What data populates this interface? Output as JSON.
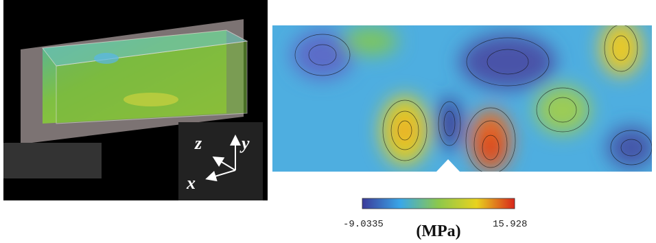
{
  "left_panel": {
    "axes": {
      "z": "z",
      "y": "y",
      "x": "x"
    }
  },
  "right_panel": {
    "colorbar": {
      "min_label": "-9.0335",
      "max_label": "15.928",
      "unit": "(MPa)"
    }
  }
}
